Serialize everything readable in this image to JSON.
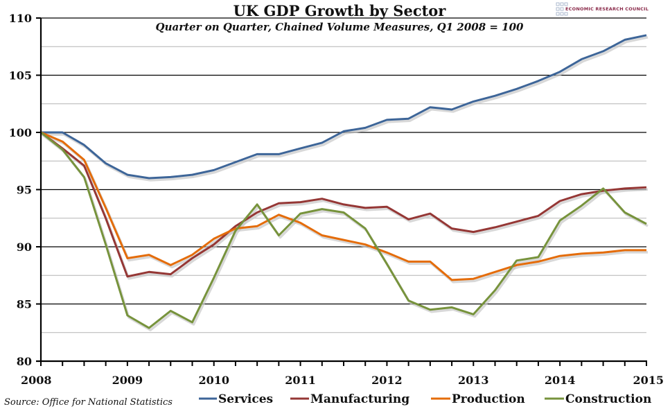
{
  "chart_data": {
    "type": "line",
    "title": "UK GDP Growth by Sector",
    "subtitle": "Quarter on Quarter, Chained Volume Measures, Q1 2008 = 100",
    "source": "Source: Office for National Statistics",
    "branding": "ECONOMIC RESEARCH COUNCIL",
    "xlabel": "",
    "ylabel": "",
    "ylim": [
      80,
      110
    ],
    "yticks": [
      80,
      85,
      90,
      95,
      100,
      105,
      110
    ],
    "ytick_labels": [
      "80",
      "85",
      "90",
      "95",
      "100",
      "105",
      "110"
    ],
    "xlim": [
      2008,
      2015
    ],
    "xticks": [
      2008,
      2009,
      2010,
      2011,
      2012,
      2013,
      2014,
      2015
    ],
    "xtick_labels": [
      "2008",
      "2009",
      "2010",
      "2011",
      "2012",
      "2013",
      "2014",
      "2015"
    ],
    "grid": {
      "major_y": true,
      "minor_y": true
    },
    "legend_position": "bottom",
    "x": [
      2008.0,
      2008.25,
      2008.5,
      2008.75,
      2009.0,
      2009.25,
      2009.5,
      2009.75,
      2010.0,
      2010.25,
      2010.5,
      2010.75,
      2011.0,
      2011.25,
      2011.5,
      2011.75,
      2012.0,
      2012.25,
      2012.5,
      2012.75,
      2013.0,
      2013.25,
      2013.5,
      2013.75,
      2014.0,
      2014.25,
      2014.5,
      2014.75,
      2015.0
    ],
    "series": [
      {
        "name": "Services",
        "color": "#3d6598",
        "values": [
          100,
          100,
          98.9,
          97.3,
          96.3,
          96.0,
          96.1,
          96.3,
          96.7,
          97.4,
          98.1,
          98.1,
          98.6,
          99.1,
          100.1,
          100.4,
          101.1,
          101.2,
          102.2,
          102.0,
          102.7,
          103.2,
          103.8,
          104.5,
          105.3,
          106.4,
          107.1,
          108.1,
          108.5
        ]
      },
      {
        "name": "Manufacturing",
        "color": "#953735",
        "values": [
          100,
          98.6,
          97.1,
          92.5,
          87.4,
          87.8,
          87.6,
          89.0,
          90.2,
          91.8,
          93.0,
          93.8,
          93.9,
          94.2,
          93.7,
          93.4,
          93.5,
          92.4,
          92.9,
          91.6,
          91.3,
          91.7,
          92.2,
          92.7,
          94.0,
          94.6,
          94.9,
          95.1,
          95.2
        ]
      },
      {
        "name": "Production",
        "color": "#e46c0a",
        "values": [
          100,
          99.2,
          97.6,
          93.4,
          89.0,
          89.3,
          88.4,
          89.3,
          90.7,
          91.6,
          91.8,
          92.8,
          92.1,
          91.0,
          90.6,
          90.2,
          89.5,
          88.7,
          88.7,
          87.1,
          87.2,
          87.8,
          88.4,
          88.7,
          89.2,
          89.4,
          89.5,
          89.7,
          89.7
        ]
      },
      {
        "name": "Construction",
        "color": "#77933c",
        "values": [
          100,
          98.5,
          96.1,
          90.2,
          84.0,
          82.9,
          84.4,
          83.4,
          87.3,
          91.4,
          93.7,
          91.0,
          92.9,
          93.3,
          93.0,
          91.6,
          88.5,
          85.3,
          84.5,
          84.7,
          84.1,
          86.2,
          88.8,
          89.1,
          92.3,
          93.6,
          95.1,
          93.0,
          92.0
        ]
      }
    ]
  }
}
